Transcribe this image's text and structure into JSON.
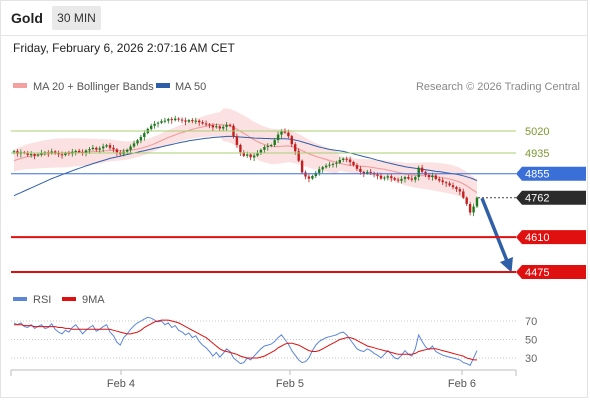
{
  "header": {
    "symbol": "Gold",
    "timeframe": "30 MIN",
    "datetime": "Friday, February 6, 2026 2:07:16 AM CET"
  },
  "colors": {
    "bollinger": "#f2a0a0",
    "band_fill": "#fbe1e1",
    "ma50": "#2e5ea8",
    "up_candle": "#1d7a1d",
    "down_candle": "#c41e1e",
    "resistance_green": "#a8cf72",
    "support_blue": "#3b6fd8",
    "support_red": "#e01010",
    "current_price_box": "#2b2b2b",
    "arrow": "#2f5fa6",
    "rsi": "#5b86d8",
    "rsi_ma": "#e01010"
  },
  "chart_data": {
    "type": "candlestick",
    "legend": {
      "items": [
        "MA 20 + Bollinger Bands",
        "MA 50"
      ],
      "placement": "top-left",
      "credit": "Research © 2026 Trading Central"
    },
    "x_tick_labels": [
      "Feb 4",
      "Feb 5",
      "Feb 6"
    ],
    "y_range": [
      4430,
      5180
    ],
    "levels": [
      {
        "value": 5020,
        "label": "5020",
        "style": "resistance-green"
      },
      {
        "value": 4935,
        "label": "4935",
        "style": "resistance-green"
      },
      {
        "value": 4855,
        "label": "4855",
        "style": "pivot-blue"
      },
      {
        "value": 4762,
        "label": "4762",
        "style": "current-price"
      },
      {
        "value": 4610,
        "label": "4610",
        "style": "support-red"
      },
      {
        "value": 4475,
        "label": "4475",
        "style": "support-red"
      }
    ],
    "forecast_arrow": {
      "from": 4760,
      "to": 4475
    },
    "closes": [
      4942,
      4932,
      4938,
      4935,
      4928,
      4931,
      4925,
      4929,
      4936,
      4938,
      4934,
      4941,
      4936,
      4930,
      4927,
      4935,
      4932,
      4940,
      4943,
      4938,
      4933,
      4945,
      4950,
      4955,
      4948,
      4953,
      4960,
      4965,
      4955,
      4949,
      4938,
      4930,
      4940,
      4947,
      4960,
      4972,
      4984,
      4997,
      5012,
      5028,
      5040,
      5048,
      5052,
      5058,
      5060,
      5066,
      5062,
      5068,
      5064,
      5061,
      5056,
      5062,
      5058,
      5060,
      5054,
      5049,
      5046,
      5042,
      5034,
      5038,
      5030,
      5036,
      5044,
      5040,
      4999,
      4966,
      4938,
      4924,
      4929,
      4918,
      4925,
      4935,
      4947,
      4958,
      4962,
      4966,
      4985,
      5006,
      5022,
      5014,
      5000,
      4969,
      4942,
      4905,
      4860,
      4844,
      4836,
      4846,
      4858,
      4872,
      4880,
      4886,
      4890,
      4893,
      4897,
      4908,
      4913,
      4910,
      4900,
      4888,
      4874,
      4862,
      4856,
      4862,
      4858,
      4852,
      4847,
      4836,
      4840,
      4845,
      4838,
      4832,
      4828,
      4835,
      4842,
      4836,
      4832,
      4842,
      4878,
      4862,
      4850,
      4842,
      4848,
      4835,
      4829,
      4822,
      4818,
      4810,
      4803,
      4795,
      4786,
      4762,
      4738,
      4705,
      4728,
      4762
    ],
    "ma20": [
      4905,
      4910,
      4914,
      4918,
      4921,
      4923,
      4925,
      4927,
      4929,
      4931,
      4932,
      4933,
      4934,
      4935,
      4935,
      4936,
      4936,
      4937,
      4938,
      4938,
      4938,
      4939,
      4940,
      4941,
      4941,
      4942,
      4943,
      4944,
      4945,
      4945,
      4944,
      4944,
      4944,
      4945,
      4946,
      4948,
      4950,
      4953,
      4957,
      4961,
      4966,
      4971,
      4977,
      4983,
      4989,
      4995,
      5000,
      5005,
      5010,
      5014,
      5018,
      5022,
      5026,
      5030,
      5033,
      5036,
      5039,
      5041,
      5043,
      5045,
      5045,
      5044,
      5043,
      5040,
      5034,
      5027,
      5019,
      5011,
      5003,
      4994,
      4986,
      4979,
      4973,
      4968,
      4964,
      4961,
      4960,
      4960,
      4961,
      4962,
      4962,
      4960,
      4955,
      4950,
      4944,
      4938,
      4932,
      4927,
      4922,
      4918,
      4914,
      4910,
      4906,
      4902,
      4899,
      4895,
      4892,
      4889,
      4887,
      4886,
      4885,
      4884,
      4883,
      4882,
      4880,
      4878,
      4876,
      4874,
      4872,
      4869,
      4866,
      4863,
      4860,
      4857,
      4854,
      4852,
      4850,
      4849,
      4848,
      4848,
      4847,
      4846,
      4845,
      4843,
      4841,
      4839,
      4837,
      4834,
      4831,
      4827,
      4822,
      4816,
      4808,
      4799,
      4790,
      4782
    ],
    "ma50": [
      4770,
      4776,
      4782,
      4788,
      4794,
      4800,
      4806,
      4812,
      4818,
      4824,
      4830,
      4836,
      4841,
      4846,
      4851,
      4856,
      4861,
      4866,
      4871,
      4876,
      4880,
      4885,
      4889,
      4894,
      4898,
      4902,
      4906,
      4910,
      4914,
      4917,
      4920,
      4923,
      4926,
      4929,
      4932,
      4935,
      4938,
      4941,
      4944,
      4947,
      4950,
      4953,
      4956,
      4959,
      4962,
      4965,
      4968,
      4971,
      4974,
      4977,
      4979,
      4982,
      4984,
      4986,
      4988,
      4990,
      4992,
      4993,
      4995,
      4996,
      4997,
      4998,
      4999,
      4999,
      4999,
      4998,
      4997,
      4996,
      4995,
      4994,
      4993,
      4992,
      4992,
      4991,
      4991,
      4990,
      4990,
      4990,
      4990,
      4990,
      4989,
      4987,
      4985,
      4982,
      4978,
      4974,
      4970,
      4966,
      4962,
      4958,
      4955,
      4952,
      4949,
      4947,
      4945,
      4943,
      4941,
      4938,
      4935,
      4932,
      4928,
      4925,
      4921,
      4918,
      4915,
      4911,
      4907,
      4904,
      4900,
      4897,
      4894,
      4891,
      4888,
      4885,
      4882,
      4880,
      4878,
      4876,
      4874,
      4872,
      4870,
      4868,
      4866,
      4864,
      4863,
      4861,
      4859,
      4857,
      4855,
      4853,
      4850,
      4847,
      4843,
      4839,
      4834,
      4828
    ],
    "rsi_panel": {
      "legend": [
        "RSI",
        "9MA"
      ],
      "y_range": [
        20,
        80
      ],
      "y_tick_labels": [
        "70",
        "50",
        "30"
      ],
      "levels": [
        70,
        50,
        30
      ],
      "rsi": [
        68,
        66,
        68,
        64,
        63,
        66,
        62,
        64,
        66,
        62,
        63,
        67,
        61,
        58,
        56,
        60,
        58,
        63,
        66,
        61,
        56,
        60,
        63,
        65,
        59,
        61,
        64,
        66,
        58,
        54,
        47,
        44,
        52,
        56,
        61,
        65,
        68,
        70,
        72,
        74,
        73,
        71,
        69,
        70,
        66,
        68,
        63,
        65,
        60,
        58,
        55,
        57,
        52,
        54,
        48,
        44,
        41,
        37,
        32,
        36,
        31,
        35,
        40,
        37,
        30,
        27,
        24,
        25,
        30,
        28,
        32,
        36,
        40,
        43,
        44,
        45,
        48,
        52,
        55,
        50,
        45,
        38,
        33,
        28,
        25,
        26,
        30,
        38,
        44,
        48,
        50,
        52,
        53,
        54,
        55,
        57,
        58,
        55,
        50,
        45,
        40,
        38,
        37,
        40,
        38,
        35,
        33,
        30,
        34,
        38,
        34,
        30,
        29,
        33,
        38,
        34,
        32,
        40,
        55,
        48,
        42,
        39,
        43,
        37,
        35,
        33,
        32,
        31,
        30,
        29,
        28,
        25,
        24,
        22,
        30,
        38
      ],
      "ma9": [
        66,
        66,
        66,
        65,
        65,
        65,
        64,
        64,
        64,
        64,
        64,
        64,
        64,
        63,
        63,
        62,
        62,
        61,
        61,
        61,
        61,
        61,
        61,
        61,
        61,
        61,
        61,
        61,
        61,
        60,
        59,
        58,
        57,
        56,
        56,
        57,
        58,
        60,
        63,
        65,
        67,
        69,
        70,
        71,
        71,
        71,
        70,
        69,
        68,
        66,
        64,
        62,
        60,
        58,
        56,
        54,
        52,
        49,
        46,
        43,
        40,
        38,
        37,
        36,
        35,
        34,
        32,
        31,
        30,
        30,
        30,
        30,
        31,
        32,
        34,
        36,
        38,
        41,
        43,
        45,
        46,
        46,
        45,
        44,
        42,
        40,
        38,
        37,
        37,
        38,
        40,
        42,
        44,
        46,
        48,
        50,
        51,
        52,
        52,
        51,
        49,
        47,
        45,
        43,
        42,
        41,
        40,
        39,
        38,
        37,
        36,
        35,
        34,
        34,
        34,
        34,
        34,
        35,
        37,
        38,
        39,
        40,
        40,
        40,
        39,
        38,
        37,
        36,
        35,
        34,
        33,
        32,
        30,
        29,
        28,
        28
      ]
    }
  }
}
